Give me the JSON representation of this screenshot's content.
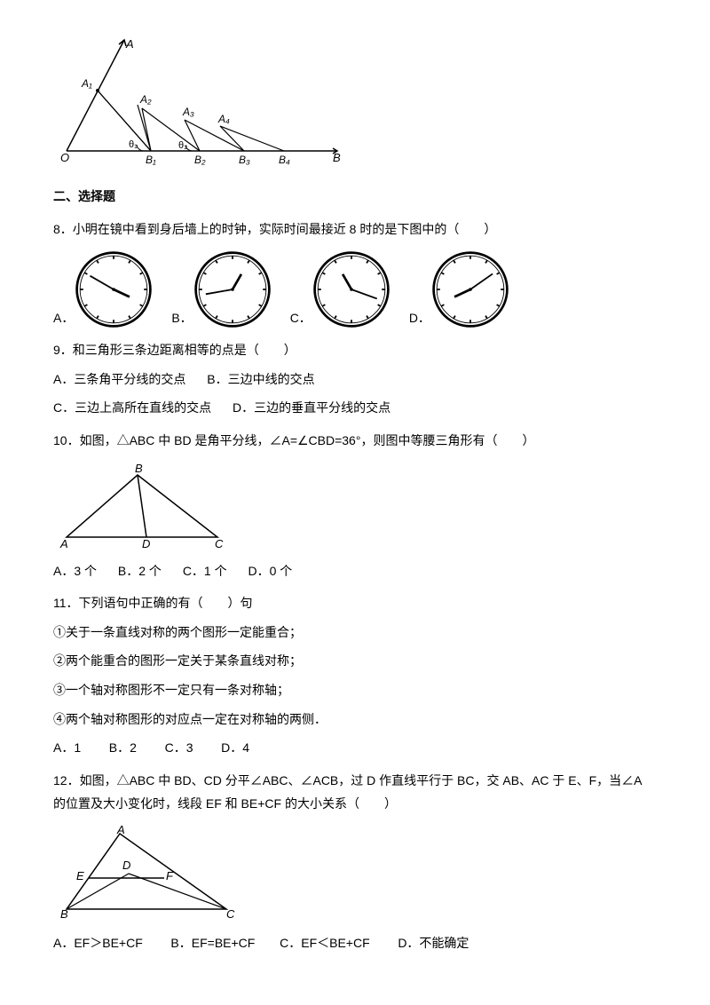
{
  "figure1": {
    "labels": {
      "O": "O",
      "A": "A",
      "A1": "A₁",
      "A2": "A₂",
      "A3": "A₃",
      "A4": "A₄",
      "B": "B",
      "B1": "B₁",
      "B2": "B₂",
      "B3": "B₃",
      "B4": "B₄",
      "theta1": "θ₁",
      "theta2": "θ₂"
    }
  },
  "section2": {
    "title": "二、选择题"
  },
  "q8": {
    "text": "8．小明在镜中看到身后墙上的时钟，实际时间最接近 8 时的是下图中的（　　）",
    "optA": "A．",
    "optB": "B．",
    "optC": "C．",
    "optD": "D．",
    "clocks": [
      {
        "hour_angle": 115,
        "min_angle": -60
      },
      {
        "hour_angle": 30,
        "min_angle": -100
      },
      {
        "hour_angle": -30,
        "min_angle": 110
      },
      {
        "hour_angle": -115,
        "min_angle": 55
      }
    ]
  },
  "q9": {
    "text": "9．和三角形三条边距离相等的点是（　　）",
    "optA": "A．三条角平分线的交点",
    "optB": "B．三边中线的交点",
    "optC": "C．三边上高所在直线的交点",
    "optD": "D．三边的垂直平分线的交点"
  },
  "q10": {
    "text": "10．如图，△ABC 中 BD 是角平分线，∠A=∠CBD=36°，则图中等腰三角形有（　　）",
    "optA": "A．3 个",
    "optB": "B．2 个",
    "optC": "C．1 个",
    "optD": "D．0 个",
    "labels": {
      "A": "A",
      "B": "B",
      "C": "C",
      "D": "D"
    }
  },
  "q11": {
    "text": "11．下列语句中正确的有（　　）句",
    "s1": "①关于一条直线对称的两个图形一定能重合；",
    "s2": "②两个能重合的图形一定关于某条直线对称；",
    "s3": "③一个轴对称图形不一定只有一条对称轴；",
    "s4": "④两个轴对称图形的对应点一定在对称轴的两侧．",
    "optA": "A．1",
    "optB": "B．2",
    "optC": "C．3",
    "optD": "D．4"
  },
  "q12": {
    "text": "12．如图，△ABC 中 BD、CD 分平∠ABC、∠ACB，过 D 作直线平行于 BC，交 AB、AC 于 E、F，当∠A 的位置及大小变化时，线段 EF 和 BE+CF 的大小关系（　　）",
    "optA": "A．EF＞BE+CF",
    "optB": "B．EF=BE+CF",
    "optC": "C．EF＜BE+CF",
    "optD": "D．不能确定",
    "labels": {
      "A": "A",
      "B": "B",
      "C": "C",
      "D": "D",
      "E": "E",
      "F": "F"
    }
  }
}
